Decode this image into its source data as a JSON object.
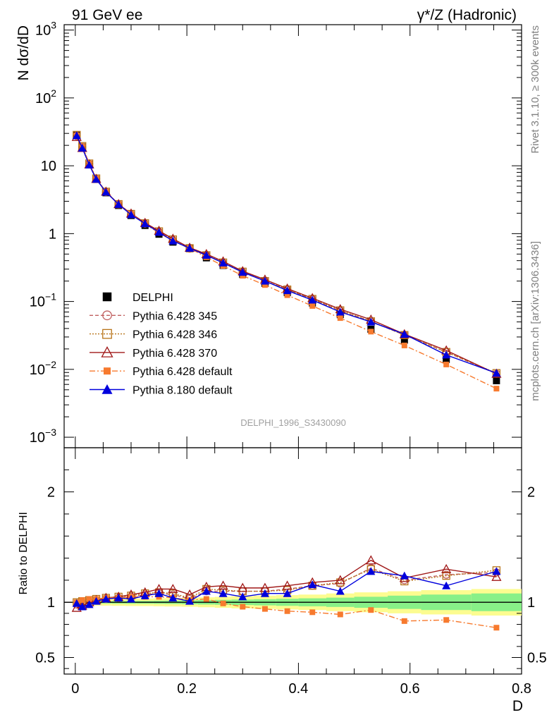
{
  "header": {
    "left_title": "91 GeV ee",
    "right_title": "γ*/Z (Hadronic)",
    "side_rivet": "Rivet 3.1.10, ≥ 300k events",
    "side_mcplots": "mcplots.cern.ch [arXiv:1306.3436]",
    "analysis_id": "DELPHI_1996_S3430090"
  },
  "chart_data": [
    {
      "type": "scatter",
      "panel": "main",
      "ylabel": "N dσ/dD",
      "yscale": "log",
      "ylim": [
        0.0007,
        1200
      ],
      "xlim": [
        -0.02,
        0.8
      ],
      "ytick_labels": [
        {
          "value": 0.001,
          "base": "10",
          "exp": "−3"
        },
        {
          "value": 0.01,
          "base": "10",
          "exp": "−2"
        },
        {
          "value": 0.1,
          "base": "10",
          "exp": "−1"
        },
        {
          "value": 1,
          "base": "1",
          "exp": ""
        },
        {
          "value": 10,
          "base": "10",
          "exp": ""
        },
        {
          "value": 100,
          "base": "10",
          "exp": "2"
        },
        {
          "value": 1000,
          "base": "10",
          "exp": "3"
        }
      ],
      "x": [
        0.0025,
        0.0125,
        0.025,
        0.0375,
        0.055,
        0.0775,
        0.1,
        0.125,
        0.15,
        0.175,
        0.205,
        0.235,
        0.265,
        0.3,
        0.34,
        0.38,
        0.425,
        0.475,
        0.53,
        0.59,
        0.665,
        0.755
      ],
      "series": [
        {
          "name": "DELPHI",
          "color": "#000000",
          "marker": "square-filled",
          "line": "none",
          "values": [
            28,
            19,
            10.5,
            6.3,
            4.0,
            2.6,
            1.85,
            1.32,
            0.98,
            0.75,
            0.6,
            0.44,
            0.34,
            0.25,
            0.185,
            0.135,
            0.095,
            0.064,
            0.039,
            0.027,
            0.014,
            0.0068
          ]
        },
        {
          "name": "Pythia 6.428 345",
          "color": "#c06060",
          "marker": "circle-open",
          "line": "dashed",
          "values": [
            27.5,
            18.8,
            10.6,
            6.4,
            4.1,
            2.7,
            1.93,
            1.4,
            1.06,
            0.8,
            0.6,
            0.48,
            0.37,
            0.27,
            0.2,
            0.15,
            0.108,
            0.073,
            0.051,
            0.032,
            0.018,
            0.0086
          ]
        },
        {
          "name": "Pythia 6.428 346",
          "color": "#b8741a",
          "marker": "square-open",
          "line": "dotted",
          "values": [
            28.5,
            19.5,
            10.8,
            6.5,
            4.15,
            2.72,
            1.95,
            1.42,
            1.08,
            0.82,
            0.61,
            0.48,
            0.375,
            0.275,
            0.2,
            0.15,
            0.109,
            0.074,
            0.051,
            0.032,
            0.018,
            0.0088
          ]
        },
        {
          "name": "Pythia 6.428 370",
          "color": "#a01818",
          "marker": "triangle-open",
          "line": "solid",
          "values": [
            26.6,
            18.3,
            10.5,
            6.4,
            4.15,
            2.72,
            1.98,
            1.44,
            1.1,
            0.84,
            0.62,
            0.5,
            0.39,
            0.28,
            0.21,
            0.155,
            0.112,
            0.077,
            0.054,
            0.033,
            0.019,
            0.0086
          ]
        },
        {
          "name": "Pythia 6.428 default",
          "color": "#f77a2e",
          "marker": "square-small-filled",
          "line": "dashdot",
          "values": [
            28.0,
            19.4,
            10.8,
            6.5,
            4.15,
            2.7,
            1.95,
            1.38,
            1.03,
            0.78,
            0.61,
            0.45,
            0.335,
            0.24,
            0.175,
            0.124,
            0.086,
            0.057,
            0.036,
            0.0225,
            0.0118,
            0.0052
          ]
        },
        {
          "name": "Pythia 8.180 default",
          "color": "#0000dd",
          "marker": "triangle-filled",
          "line": "solid",
          "values": [
            27.9,
            18.3,
            10.3,
            6.35,
            4.1,
            2.7,
            1.9,
            1.4,
            1.05,
            0.78,
            0.61,
            0.48,
            0.37,
            0.27,
            0.2,
            0.145,
            0.105,
            0.07,
            0.05,
            0.033,
            0.0163,
            0.0088
          ]
        }
      ]
    },
    {
      "type": "scatter",
      "panel": "ratio",
      "ylabel": "Ratio to DELPHI",
      "xlabel": "D",
      "ylim": [
        0.35,
        2.4
      ],
      "xlim": [
        -0.02,
        0.8
      ],
      "ytick_labels": [
        "0.5",
        "1",
        "2"
      ],
      "ytick_values": [
        0.5,
        1,
        2
      ],
      "xtick_labels": [
        "0",
        "0.2",
        "0.4",
        "0.6",
        "0.8"
      ],
      "xtick_values": [
        0,
        0.2,
        0.4,
        0.6,
        0.8
      ],
      "uncertainty_bands": {
        "x_edges": [
          0,
          0.005,
          0.02,
          0.03,
          0.045,
          0.065,
          0.09,
          0.11,
          0.14,
          0.16,
          0.19,
          0.22,
          0.25,
          0.28,
          0.32,
          0.36,
          0.4,
          0.45,
          0.5,
          0.56,
          0.62,
          0.71,
          0.8
        ],
        "stat_halfwidth": [
          0.012,
          0.01,
          0.01,
          0.011,
          0.011,
          0.012,
          0.013,
          0.013,
          0.014,
          0.015,
          0.017,
          0.02,
          0.022,
          0.025,
          0.028,
          0.032,
          0.036,
          0.042,
          0.05,
          0.06,
          0.07,
          0.08
        ],
        "total_halfwidth": [
          0.03,
          0.028,
          0.028,
          0.03,
          0.03,
          0.032,
          0.034,
          0.034,
          0.036,
          0.038,
          0.04,
          0.045,
          0.05,
          0.055,
          0.06,
          0.065,
          0.07,
          0.08,
          0.09,
          0.1,
          0.11,
          0.12
        ],
        "stat_color": "#88f088",
        "total_color": "#fcfc90"
      },
      "series": [
        {
          "name": "Pythia 6.428 345",
          "color": "#c06060",
          "marker": "circle-open",
          "line": "dashed",
          "values": [
            0.98,
            0.99,
            1.01,
            1.02,
            1.03,
            1.04,
            1.05,
            1.07,
            1.08,
            1.07,
            1.03,
            1.1,
            1.1,
            1.1,
            1.1,
            1.12,
            1.15,
            1.17,
            1.31,
            1.2,
            1.25,
            1.27
          ]
        },
        {
          "name": "Pythia 6.428 346",
          "color": "#b8741a",
          "marker": "square-open",
          "line": "dotted",
          "values": [
            1.0,
            1.01,
            1.02,
            1.03,
            1.04,
            1.05,
            1.06,
            1.08,
            1.09,
            1.08,
            1.04,
            1.12,
            1.11,
            1.1,
            1.1,
            1.11,
            1.15,
            1.18,
            1.3,
            1.19,
            1.24,
            1.29
          ]
        },
        {
          "name": "Pythia 6.428 370",
          "color": "#a01818",
          "marker": "triangle-open",
          "line": "solid",
          "values": [
            0.95,
            0.97,
            1.0,
            1.02,
            1.04,
            1.05,
            1.07,
            1.09,
            1.12,
            1.12,
            1.07,
            1.14,
            1.15,
            1.13,
            1.13,
            1.15,
            1.18,
            1.2,
            1.38,
            1.22,
            1.3,
            1.23
          ]
        },
        {
          "name": "Pythia 6.428 default",
          "color": "#f77a2e",
          "marker": "square-small-filled",
          "line": "dashdot",
          "values": [
            1.0,
            1.02,
            1.03,
            1.03,
            1.04,
            1.04,
            1.05,
            1.05,
            1.05,
            1.04,
            1.02,
            1.03,
            0.99,
            0.96,
            0.94,
            0.92,
            0.91,
            0.89,
            0.93,
            0.83,
            0.84,
            0.77
          ]
        },
        {
          "name": "Pythia 8.180 default",
          "color": "#0000dd",
          "marker": "triangle-filled",
          "line": "solid",
          "values": [
            0.99,
            0.96,
            0.98,
            1.01,
            1.03,
            1.04,
            1.03,
            1.06,
            1.08,
            1.04,
            1.01,
            1.1,
            1.08,
            1.05,
            1.08,
            1.08,
            1.16,
            1.1,
            1.28,
            1.24,
            1.15,
            1.28
          ]
        }
      ]
    }
  ]
}
